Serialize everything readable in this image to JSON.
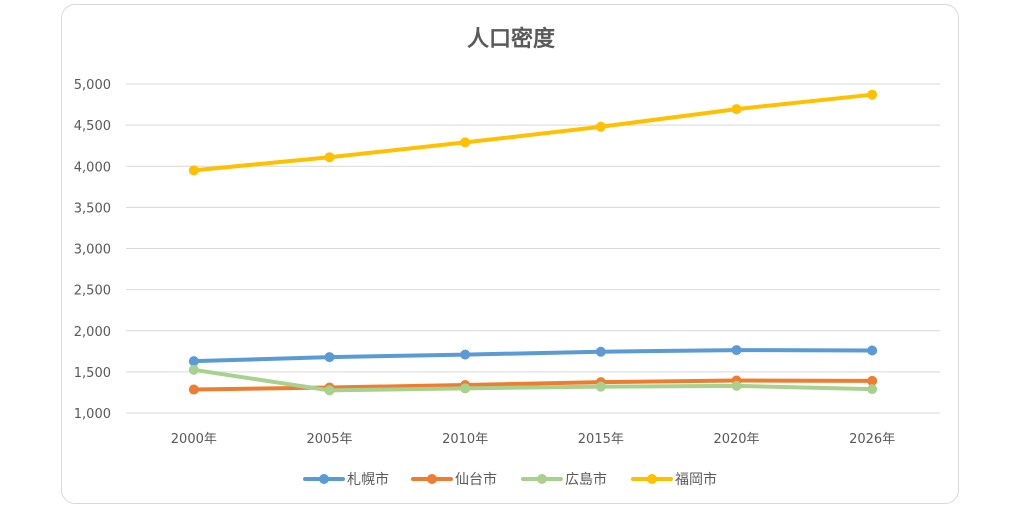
{
  "chart_data": {
    "type": "line",
    "title": "人口密度",
    "categories": [
      "2000年",
      "2005年",
      "2010年",
      "2015年",
      "2020年",
      "2026年"
    ],
    "yticks": [
      "1,000",
      "1,500",
      "2,000",
      "2,500",
      "3,000",
      "3,500",
      "4,000",
      "4,500",
      "5,000"
    ],
    "ylim": [
      1000,
      5000
    ],
    "grid": true,
    "legend_position": "bottom",
    "series": [
      {
        "name": "札幌市",
        "color": "#5b9bd5",
        "values": [
          1630,
          1680,
          1710,
          1745,
          1765,
          1760
        ]
      },
      {
        "name": "仙台市",
        "color": "#ed7d31",
        "values": [
          1285,
          1310,
          1340,
          1375,
          1395,
          1390
        ]
      },
      {
        "name": "広島市",
        "color": "#a9d18e",
        "values": [
          1525,
          1275,
          1300,
          1320,
          1330,
          1290
        ]
      },
      {
        "name": "福岡市",
        "color": "#ffc000",
        "values": [
          3950,
          4110,
          4290,
          4480,
          4695,
          4870
        ]
      }
    ]
  }
}
